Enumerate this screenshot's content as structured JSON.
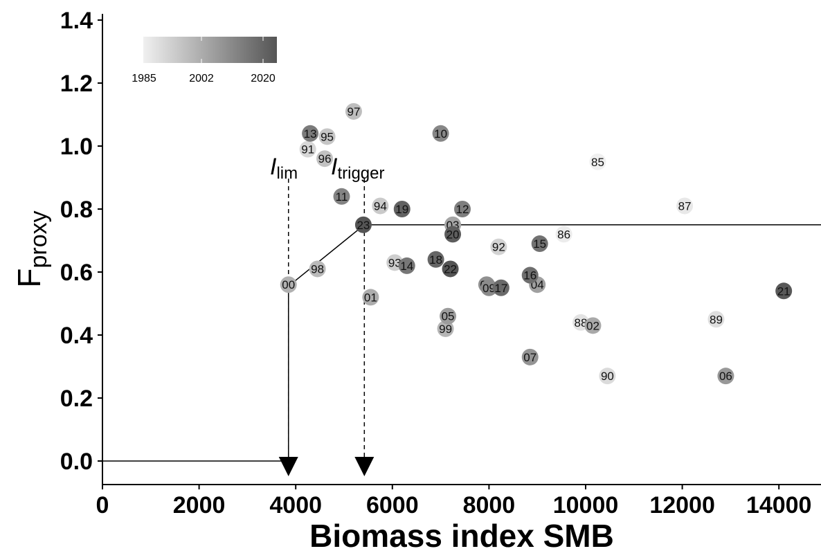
{
  "chart_data": {
    "type": "scatter",
    "xlabel": "Biomass index SMB",
    "ylabel_main": "F",
    "ylabel_sub": "proxy",
    "xlim": [
      0,
      14800
    ],
    "ylim": [
      -0.07,
      1.42
    ],
    "x_ticks": [
      0,
      2000,
      4000,
      6000,
      8000,
      10000,
      12000,
      14000
    ],
    "x_tick_labels": [
      "0",
      "2000",
      "4000",
      "6000",
      "8000",
      "10000",
      "12000",
      "14000"
    ],
    "y_ticks": [
      0.0,
      0.2,
      0.4,
      0.6,
      0.8,
      1.0,
      1.2,
      1.4
    ],
    "y_tick_labels": [
      "0.0",
      "0.2",
      "0.4",
      "0.6",
      "0.8",
      "1.0",
      "1.2",
      "1.4"
    ],
    "grid": false,
    "legend": {
      "type": "colorbar",
      "placement": "top-left",
      "labels": [
        "1985",
        "2002",
        "2020"
      ],
      "min_year": 1985,
      "max_year": 2022,
      "color_low": "#f0f0f0",
      "color_high": "#555555"
    },
    "reference": {
      "I_lim": 3850,
      "I_trigger": 5420,
      "F_at_Ilim": 0.555,
      "F_target": 0.75,
      "I_lim_label_main": "I",
      "I_lim_label_sub": "lim",
      "I_trigger_label_main": "I",
      "I_trigger_label_sub": "trigger"
    },
    "points": [
      {
        "label": "85",
        "year": 1985,
        "x": 10250,
        "y": 0.95
      },
      {
        "label": "86",
        "year": 1986,
        "x": 9550,
        "y": 0.72
      },
      {
        "label": "87",
        "year": 1987,
        "x": 12050,
        "y": 0.81
      },
      {
        "label": "88",
        "year": 1988,
        "x": 9900,
        "y": 0.44
      },
      {
        "label": "89",
        "year": 1989,
        "x": 12700,
        "y": 0.45
      },
      {
        "label": "90",
        "year": 1990,
        "x": 10450,
        "y": 0.27
      },
      {
        "label": "91",
        "year": 1991,
        "x": 4250,
        "y": 0.99
      },
      {
        "label": "92",
        "year": 1992,
        "x": 8200,
        "y": 0.68
      },
      {
        "label": "93",
        "year": 1993,
        "x": 6050,
        "y": 0.63
      },
      {
        "label": "94",
        "year": 1994,
        "x": 5750,
        "y": 0.81
      },
      {
        "label": "95",
        "year": 1995,
        "x": 4650,
        "y": 1.03
      },
      {
        "label": "96",
        "year": 1996,
        "x": 4600,
        "y": 0.96
      },
      {
        "label": "97",
        "year": 1997,
        "x": 5200,
        "y": 1.11
      },
      {
        "label": "98",
        "year": 1998,
        "x": 4450,
        "y": 0.61
      },
      {
        "label": "99",
        "year": 1999,
        "x": 7100,
        "y": 0.42
      },
      {
        "label": "00",
        "year": 2000,
        "x": 3850,
        "y": 0.56
      },
      {
        "label": "01",
        "year": 2001,
        "x": 5550,
        "y": 0.52
      },
      {
        "label": "02",
        "year": 2002,
        "x": 10150,
        "y": 0.43
      },
      {
        "label": "03",
        "year": 2003,
        "x": 7250,
        "y": 0.75
      },
      {
        "label": "04",
        "year": 2004,
        "x": 9000,
        "y": 0.56
      },
      {
        "label": "05",
        "year": 2005,
        "x": 7150,
        "y": 0.46
      },
      {
        "label": "06",
        "year": 2006,
        "x": 12900,
        "y": 0.27
      },
      {
        "label": "07",
        "year": 2007,
        "x": 8850,
        "y": 0.33
      },
      {
        "label": "08",
        "year": 2008,
        "x": 7950,
        "y": 0.56
      },
      {
        "label": "09",
        "year": 2009,
        "x": 8000,
        "y": 0.55
      },
      {
        "label": "10",
        "year": 2010,
        "x": 7000,
        "y": 1.04
      },
      {
        "label": "11",
        "year": 2011,
        "x": 4950,
        "y": 0.84
      },
      {
        "label": "12",
        "year": 2012,
        "x": 7450,
        "y": 0.8
      },
      {
        "label": "13",
        "year": 2013,
        "x": 4300,
        "y": 1.04
      },
      {
        "label": "14",
        "year": 2014,
        "x": 6300,
        "y": 0.62
      },
      {
        "label": "15",
        "year": 2015,
        "x": 9050,
        "y": 0.69
      },
      {
        "label": "16",
        "year": 2016,
        "x": 8850,
        "y": 0.59
      },
      {
        "label": "17",
        "year": 2017,
        "x": 8250,
        "y": 0.55
      },
      {
        "label": "18",
        "year": 2018,
        "x": 6900,
        "y": 0.64
      },
      {
        "label": "19",
        "year": 2019,
        "x": 6200,
        "y": 0.8
      },
      {
        "label": "20",
        "year": 2020,
        "x": 7250,
        "y": 0.72
      },
      {
        "label": "21",
        "year": 2021,
        "x": 14100,
        "y": 0.54
      },
      {
        "label": "22",
        "year": 2022,
        "x": 7200,
        "y": 0.61
      },
      {
        "label": "23",
        "year": 2023,
        "x": 5400,
        "y": 0.75
      }
    ]
  }
}
